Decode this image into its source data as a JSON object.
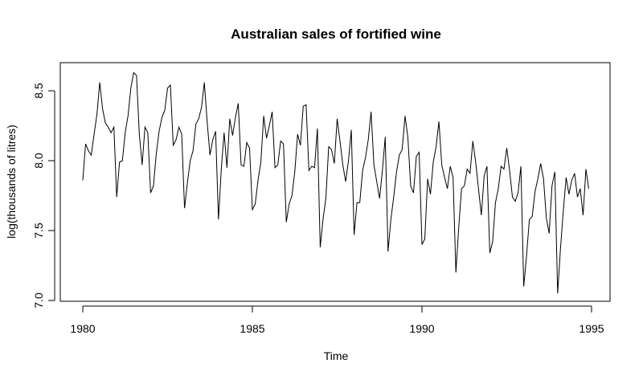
{
  "chart_data": {
    "type": "line",
    "title": "Australian sales of fortified wine",
    "xlabel": "Time",
    "ylabel": "log(thousands of litres)",
    "xlim": [
      1980,
      1995
    ],
    "ylim": [
      7.0,
      8.6
    ],
    "xticks": [
      1980,
      1985,
      1990,
      1995
    ],
    "yticks": [
      7.0,
      7.5,
      8.0,
      8.5
    ],
    "grid": false,
    "x_start": 1980.0,
    "frequency": 12,
    "series": [
      {
        "color": "#000000",
        "values": [
          7.86,
          8.12,
          8.07,
          8.04,
          8.19,
          8.33,
          8.56,
          8.37,
          8.27,
          8.24,
          8.2,
          8.24,
          7.74,
          7.99,
          8.0,
          8.2,
          8.32,
          8.52,
          8.63,
          8.61,
          8.19,
          7.97,
          8.24,
          8.2,
          7.77,
          7.82,
          8.05,
          8.21,
          8.31,
          8.36,
          8.52,
          8.54,
          8.11,
          8.15,
          8.24,
          8.19,
          7.66,
          7.84,
          8.0,
          8.07,
          8.26,
          8.3,
          8.38,
          8.56,
          8.28,
          8.04,
          8.15,
          8.21,
          7.58,
          7.94,
          8.2,
          7.95,
          8.3,
          8.18,
          8.31,
          8.41,
          7.97,
          7.96,
          8.13,
          8.09,
          7.65,
          7.69,
          7.86,
          7.99,
          8.32,
          8.16,
          8.25,
          8.35,
          7.95,
          7.97,
          8.14,
          8.12,
          7.56,
          7.69,
          7.75,
          7.92,
          8.19,
          8.11,
          8.39,
          8.4,
          7.93,
          7.96,
          7.95,
          8.23,
          7.38,
          7.58,
          7.73,
          8.1,
          8.08,
          7.98,
          8.3,
          8.14,
          7.97,
          7.85,
          8.0,
          8.22,
          7.47,
          7.7,
          7.7,
          7.93,
          8.02,
          8.15,
          8.35,
          7.97,
          7.85,
          7.73,
          7.93,
          8.17,
          7.35,
          7.58,
          7.74,
          7.92,
          8.04,
          8.08,
          8.32,
          8.17,
          7.82,
          7.77,
          8.03,
          8.06,
          7.4,
          7.44,
          7.87,
          7.76,
          7.99,
          8.1,
          8.28,
          7.97,
          7.88,
          7.8,
          7.96,
          7.88,
          7.2,
          7.52,
          7.8,
          7.82,
          7.94,
          7.91,
          8.14,
          7.99,
          7.8,
          7.61,
          7.89,
          7.96,
          7.34,
          7.42,
          7.7,
          7.8,
          7.96,
          7.94,
          8.09,
          7.93,
          7.74,
          7.71,
          7.77,
          7.96,
          7.1,
          7.32,
          7.58,
          7.6,
          7.78,
          7.87,
          7.98,
          7.87,
          7.59,
          7.48,
          7.82,
          7.92,
          7.05,
          7.37,
          7.64,
          7.88,
          7.76,
          7.86,
          7.91,
          7.74,
          7.8,
          7.61,
          7.94,
          7.8
        ]
      }
    ]
  }
}
